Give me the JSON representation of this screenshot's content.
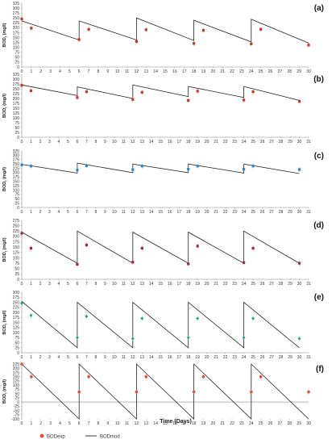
{
  "figure": {
    "x_axis_label": "Time (Days)",
    "y_axis_label": "BOD",
    "y_axis_label_sub": "t",
    "y_axis_label_unit": " (mg/l)",
    "legend": [
      "BODexp",
      "BODmod"
    ]
  },
  "chart_data": [
    {
      "type": "line",
      "panel_label": "(a)",
      "xlim": [
        0,
        30
      ],
      "ylim": [
        0,
        325
      ],
      "y_ticks": [
        0,
        25,
        50,
        75,
        100,
        125,
        150,
        175,
        200,
        225,
        250,
        275,
        300,
        325
      ],
      "marker_color": "#c0392b",
      "marker_shape": "square",
      "series": [
        {
          "name": "BODmod",
          "x": [
            0,
            6,
            6,
            12,
            12,
            18,
            18,
            24,
            24,
            30
          ],
          "y": [
            235,
            138,
            235,
            138,
            250,
            135,
            238,
            128,
            243,
            122
          ]
        },
        {
          "name": "BODexp",
          "x": [
            0,
            1,
            6,
            7,
            12,
            13,
            18,
            19,
            24,
            25,
            30
          ],
          "y": [
            245,
            198,
            140,
            192,
            130,
            190,
            120,
            187,
            118,
            192,
            112
          ]
        }
      ]
    },
    {
      "type": "line",
      "panel_label": "(b)",
      "xlim": [
        0,
        31
      ],
      "ylim": [
        0,
        325
      ],
      "y_ticks": [
        0,
        25,
        50,
        75,
        100,
        125,
        150,
        175,
        200,
        225,
        250,
        275,
        300,
        325
      ],
      "marker_color": "#c0392b",
      "marker_shape": "square",
      "series": [
        {
          "name": "BODmod",
          "x": [
            0,
            6,
            6,
            12,
            12,
            18,
            18,
            24,
            24,
            30
          ],
          "y": [
            270,
            215,
            260,
            200,
            270,
            210,
            262,
            205,
            262,
            190
          ]
        },
        {
          "name": "BODexp",
          "x": [
            0,
            1,
            6,
            7,
            12,
            13,
            18,
            19,
            24,
            25,
            30
          ],
          "y": [
            268,
            240,
            205,
            235,
            195,
            232,
            190,
            238,
            192,
            235,
            185
          ]
        }
      ]
    },
    {
      "type": "line",
      "panel_label": "(c)",
      "xlim": [
        0,
        31
      ],
      "ylim": [
        0,
        325
      ],
      "y_ticks": [
        0,
        25,
        50,
        75,
        100,
        125,
        150,
        175,
        200,
        225,
        250,
        275,
        300,
        325
      ],
      "marker_color": "#2e86c1",
      "marker_shape": "square",
      "series": [
        {
          "name": "BODmod",
          "x": [
            0,
            6,
            6,
            12,
            12,
            18,
            18,
            24,
            24,
            30
          ],
          "y": [
            248,
            198,
            255,
            200,
            250,
            200,
            250,
            198,
            250,
            195
          ]
        },
        {
          "name": "BODexp",
          "x": [
            0,
            1,
            6,
            7,
            12,
            13,
            18,
            19,
            24,
            25,
            30
          ],
          "y": [
            245,
            238,
            215,
            240,
            218,
            238,
            220,
            238,
            220,
            238,
            218
          ]
        }
      ]
    },
    {
      "type": "line",
      "panel_label": "(d)",
      "xlim": [
        0,
        31
      ],
      "ylim": [
        0,
        275
      ],
      "y_ticks": [
        0,
        25,
        50,
        75,
        100,
        125,
        150,
        175,
        200,
        225,
        250,
        275
      ],
      "marker_color": "#922b5a",
      "marker_shape": "square",
      "series": [
        {
          "name": "BODmod",
          "x": [
            0,
            6,
            6,
            12,
            12,
            18,
            18,
            24,
            24,
            30
          ],
          "y": [
            220,
            75,
            225,
            75,
            220,
            75,
            220,
            75,
            225,
            75
          ]
        },
        {
          "name": "BODexp",
          "x": [
            0,
            1,
            6,
            7,
            12,
            13,
            18,
            19,
            24,
            25,
            30
          ],
          "y": [
            215,
            145,
            70,
            160,
            80,
            145,
            72,
            155,
            78,
            145,
            75
          ]
        }
      ]
    },
    {
      "type": "line",
      "panel_label": "(e)",
      "xlim": [
        0,
        31
      ],
      "ylim": [
        0,
        300
      ],
      "y_ticks": [
        0,
        25,
        50,
        75,
        100,
        125,
        150,
        175,
        200,
        225,
        250,
        275,
        300
      ],
      "marker_color": "#17a589",
      "marker_shape": "diamond",
      "series": [
        {
          "name": "BODmod",
          "x": [
            0,
            6,
            6,
            12,
            12,
            18,
            18,
            24,
            24,
            30
          ],
          "y": [
            255,
            25,
            250,
            25,
            250,
            25,
            250,
            25,
            250,
            25
          ]
        },
        {
          "name": "BODexp",
          "x": [
            0,
            1,
            6,
            7,
            12,
            13,
            18,
            19,
            24,
            25,
            30
          ],
          "y": [
            245,
            185,
            75,
            180,
            70,
            170,
            75,
            170,
            75,
            170,
            70
          ]
        }
      ]
    },
    {
      "type": "line",
      "panel_label": "(f)",
      "xlim": [
        0,
        30
      ],
      "ylim": [
        -100,
        225
      ],
      "y_ticks": [
        -100,
        -75,
        -50,
        -25,
        0,
        25,
        50,
        75,
        100,
        125,
        150,
        175,
        200,
        225
      ],
      "marker_color": "#e74c3c",
      "marker_shape": "circle",
      "series": [
        {
          "name": "BODmod",
          "x": [
            0,
            6,
            6,
            12,
            12,
            18,
            18,
            24,
            24,
            30
          ],
          "y": [
            225,
            -100,
            225,
            -100,
            225,
            -100,
            225,
            -100,
            225,
            -100
          ]
        },
        {
          "name": "BODexp",
          "x": [
            0,
            1,
            6,
            7,
            12,
            13,
            18,
            19,
            24,
            25,
            30
          ],
          "y": [
            225,
            150,
            60,
            150,
            60,
            150,
            60,
            150,
            60,
            150,
            60
          ]
        }
      ]
    }
  ]
}
